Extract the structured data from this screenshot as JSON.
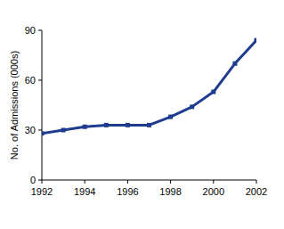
{
  "chart_data": {
    "type": "line",
    "y_label": "No. of Admissions (000s)",
    "x": [
      1992,
      1993,
      1994,
      1995,
      1996,
      1997,
      1998,
      1999,
      2000,
      2001,
      2002
    ],
    "values": [
      28,
      30,
      32,
      33,
      33,
      33,
      38,
      44,
      53,
      70,
      84
    ],
    "color": "#1f3c8f",
    "marker": "square",
    "xlim": [
      1992,
      2002
    ],
    "xticks": [
      1992,
      1994,
      1996,
      1998,
      2000,
      2002
    ],
    "ylim": [
      0,
      90
    ],
    "yticks": [
      0,
      30,
      60,
      90
    ],
    "grid": false
  }
}
